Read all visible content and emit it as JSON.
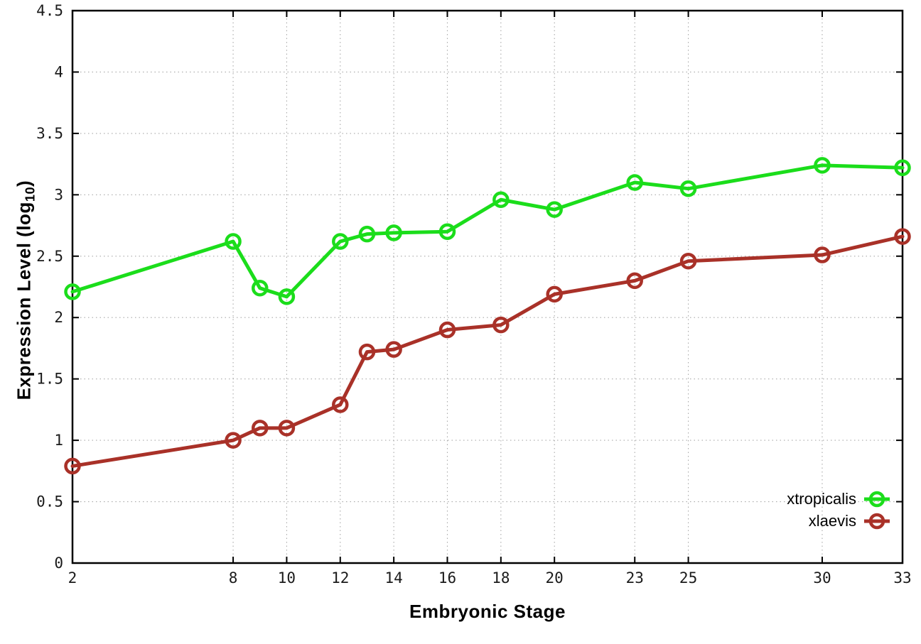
{
  "figure": {
    "background": "#ffffff",
    "axis_color": "#000000",
    "grid_color": "#a9a9a9",
    "ylabel_pre": "Expression Level (log",
    "ylabel_sub": "10",
    "ylabel_post": ")"
  },
  "chart_data": {
    "type": "line",
    "title": "",
    "xlabel": "Embryonic Stage",
    "ylabel": "Expression Level (log10)",
    "xlim": [
      2,
      33
    ],
    "ylim": [
      0,
      4.5
    ],
    "x_ticks": [
      2,
      8,
      10,
      12,
      14,
      16,
      18,
      20,
      23,
      25,
      30,
      33
    ],
    "y_ticks": [
      "0",
      "0.5",
      "1",
      "1.5",
      "2",
      "2.5",
      "3",
      "3.5",
      "4",
      "4.5"
    ],
    "grid": true,
    "legend_position": "bottom-right",
    "x": [
      2,
      8,
      9,
      10,
      12,
      13,
      14,
      16,
      18,
      20,
      23,
      25,
      30,
      33
    ],
    "series": [
      {
        "name": "xtropicalis",
        "color": "#1bdd1b",
        "values": [
          2.21,
          2.62,
          2.24,
          2.17,
          2.62,
          2.68,
          2.69,
          2.7,
          2.96,
          2.88,
          3.1,
          3.05,
          3.24,
          3.22
        ]
      },
      {
        "name": "xlaevis",
        "color": "#a93128",
        "values": [
          0.79,
          1.0,
          1.1,
          1.1,
          1.29,
          1.72,
          1.74,
          1.9,
          1.94,
          2.19,
          2.3,
          2.46,
          2.51,
          2.66
        ]
      }
    ]
  }
}
